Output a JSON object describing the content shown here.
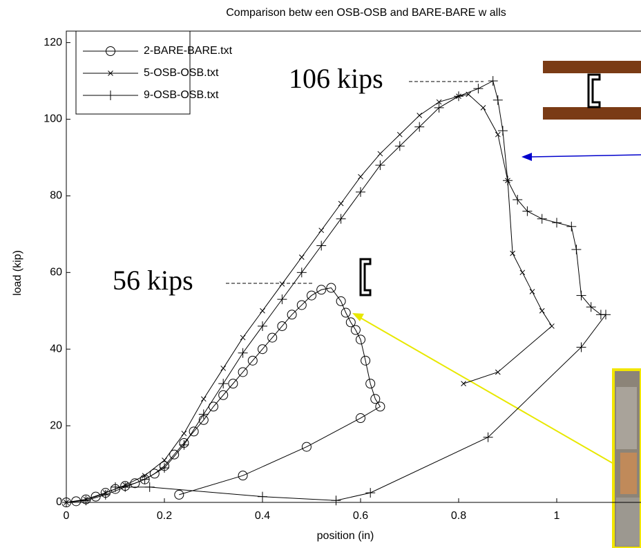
{
  "chart_data": {
    "type": "line",
    "title": "Comparison betw een OSB-OSB and BARE-BARE w alls",
    "x_label": "position (in)",
    "y_label": "load (kip)",
    "annotations": [
      "106 kips",
      "56 kips"
    ],
    "xlim": [
      0,
      1.2
    ],
    "xticks": [
      0,
      0.2,
      0.4,
      0.6,
      0.8,
      1
    ],
    "ylim": [
      0,
      123
    ],
    "yticks": [
      0,
      20,
      40,
      60,
      80,
      100,
      120
    ],
    "legend": "top-left",
    "series": [
      {
        "name": "2-BARE-BARE.txt",
        "color": "#000000",
        "marker": "o",
        "x": [
          0,
          0.02,
          0.04,
          0.06,
          0.08,
          0.1,
          0.12,
          0.14,
          0.16,
          0.18,
          0.2,
          0.22,
          0.24,
          0.26,
          0.28,
          0.3,
          0.32,
          0.34,
          0.36,
          0.38,
          0.4,
          0.42,
          0.44,
          0.46,
          0.48,
          0.5,
          0.52,
          0.54,
          0.56,
          0.57,
          0.58,
          0.59,
          0.6,
          0.61,
          0.62,
          0.63,
          0.64,
          0.6,
          0.49,
          0.36,
          0.23
        ],
        "values": [
          0,
          0.3,
          0.8,
          1.5,
          2.5,
          3.5,
          4.3,
          5,
          6,
          7.5,
          9.5,
          12.5,
          15.5,
          18.5,
          21.5,
          25,
          28,
          31,
          34,
          37,
          40,
          43,
          46,
          49,
          51.5,
          54,
          55.5,
          56,
          52.5,
          49.5,
          47,
          45,
          42.5,
          37,
          31,
          27,
          25,
          22,
          14.5,
          7,
          2
        ]
      },
      {
        "name": "5-OSB-OSB.txt",
        "color": "#000000",
        "marker": "x",
        "x": [
          0,
          0.04,
          0.08,
          0.12,
          0.16,
          0.2,
          0.24,
          0.28,
          0.32,
          0.36,
          0.4,
          0.44,
          0.48,
          0.52,
          0.56,
          0.6,
          0.64,
          0.68,
          0.72,
          0.76,
          0.8,
          0.82,
          0.85,
          0.88,
          0.9,
          0.91,
          0.93,
          0.95,
          0.97,
          0.99,
          0.88,
          0.81
        ],
        "values": [
          0,
          0.8,
          2.5,
          4.5,
          7,
          11,
          18,
          27,
          35,
          43,
          50,
          57,
          64,
          71,
          78,
          85,
          91,
          96,
          101,
          104.5,
          106,
          106.5,
          103,
          96,
          84,
          65,
          60,
          55,
          50,
          46,
          34,
          31
        ]
      },
      {
        "name": "9-OSB-OSB.txt",
        "color": "#000000",
        "marker": "+",
        "x": [
          0,
          0.04,
          0.08,
          0.12,
          0.16,
          0.2,
          0.24,
          0.28,
          0.32,
          0.36,
          0.4,
          0.44,
          0.48,
          0.52,
          0.56,
          0.6,
          0.64,
          0.68,
          0.72,
          0.76,
          0.8,
          0.84,
          0.87,
          0.88,
          0.89,
          0.9,
          0.92,
          0.94,
          0.97,
          1.0,
          1.03,
          1.04,
          1.05,
          1.07,
          1.09,
          1.1,
          1.05,
          0.86,
          0.62,
          0.55,
          0.4,
          0.17,
          0.1
        ],
        "values": [
          0,
          0.5,
          2,
          4,
          6,
          9,
          15,
          23,
          31,
          39,
          46,
          53,
          60,
          67,
          74,
          81,
          88,
          93,
          98,
          103,
          106,
          108,
          110,
          105,
          97,
          84,
          79,
          76,
          74,
          73,
          72,
          66,
          54,
          51,
          49,
          49,
          40.5,
          17,
          2.5,
          0.5,
          1.5,
          4,
          4
        ]
      }
    ]
  }
}
